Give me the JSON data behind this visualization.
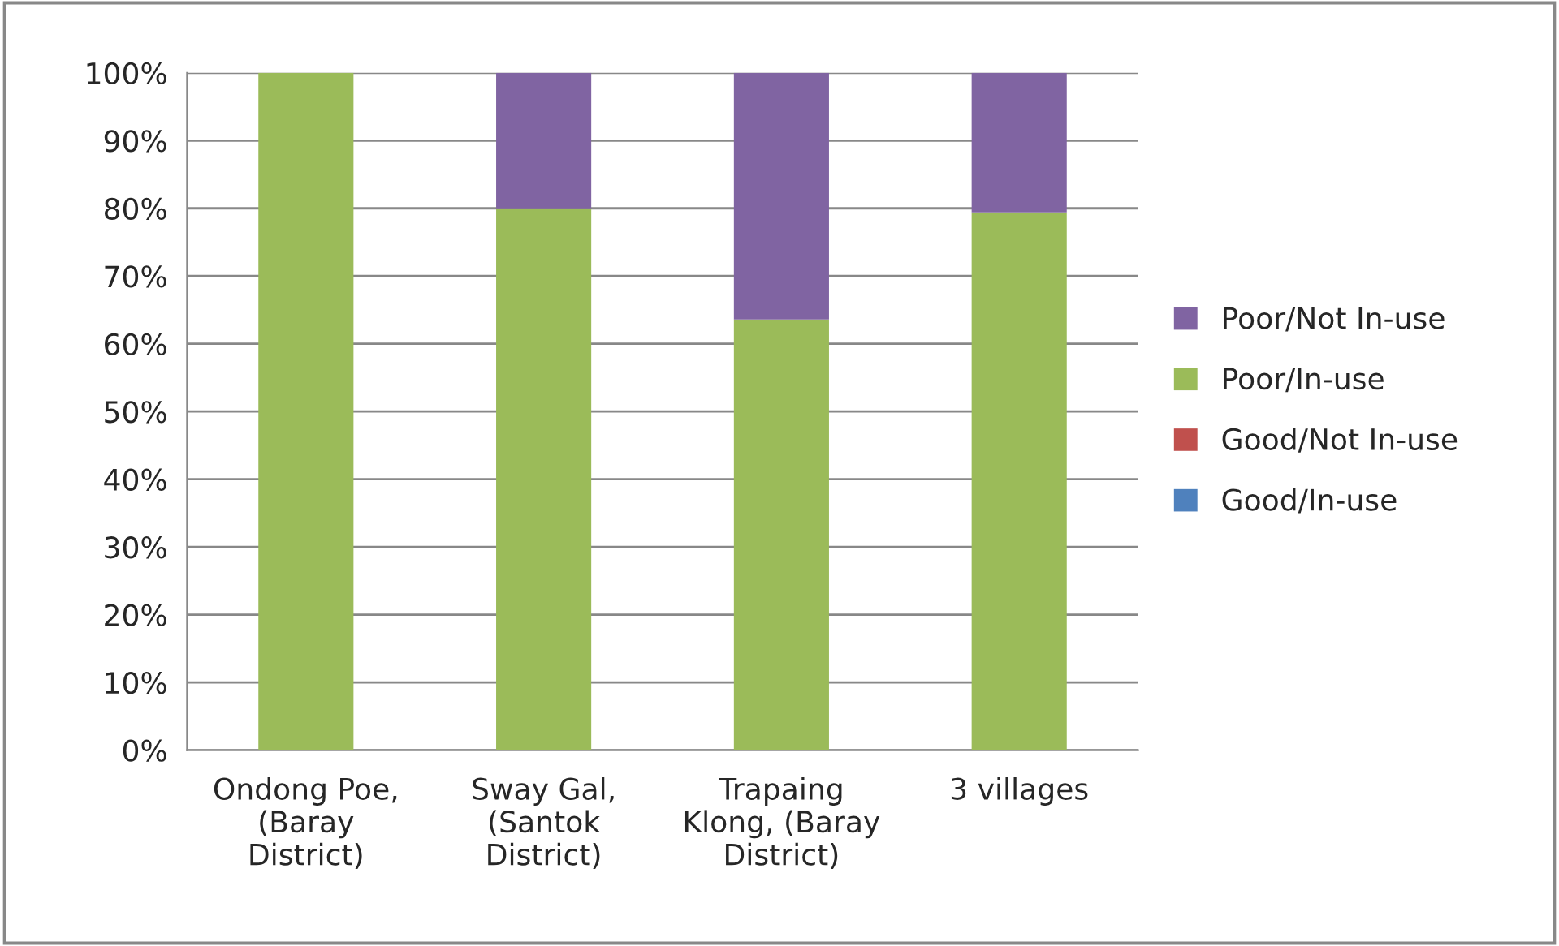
{
  "chart_data": {
    "type": "bar",
    "stacked": true,
    "categories": [
      "Ondong Poe,\n(Baray\nDistrict)",
      "Sway Gal,\n(Santok\nDistrict)",
      "Trapaing\nKlong, (Baray\nDistrict)",
      "3 villages"
    ],
    "series": [
      {
        "name": "Good/In-use",
        "color": "#4f81bd",
        "values": [
          0,
          0,
          0,
          0
        ]
      },
      {
        "name": "Good/Not In-use",
        "color": "#c0504d",
        "values": [
          0,
          0,
          0,
          0
        ]
      },
      {
        "name": "Poor/In-use",
        "color": "#9bbb59",
        "values": [
          100,
          80,
          63.6,
          79.4
        ]
      },
      {
        "name": "Poor/Not In-use",
        "color": "#8064a2",
        "values": [
          0,
          20,
          36.4,
          20.6
        ]
      }
    ],
    "ylim": [
      0,
      100
    ],
    "yticks": [
      {
        "value": 0,
        "label": "0%"
      },
      {
        "value": 10,
        "label": "10%"
      },
      {
        "value": 20,
        "label": "20%"
      },
      {
        "value": 30,
        "label": "30%"
      },
      {
        "value": 40,
        "label": "40%"
      },
      {
        "value": 50,
        "label": "50%"
      },
      {
        "value": 60,
        "label": "60%"
      },
      {
        "value": 70,
        "label": "70%"
      },
      {
        "value": 80,
        "label": "80%"
      },
      {
        "value": 90,
        "label": "90%"
      },
      {
        "value": 100,
        "label": "100%"
      }
    ],
    "grid": "y",
    "legend": "right"
  }
}
